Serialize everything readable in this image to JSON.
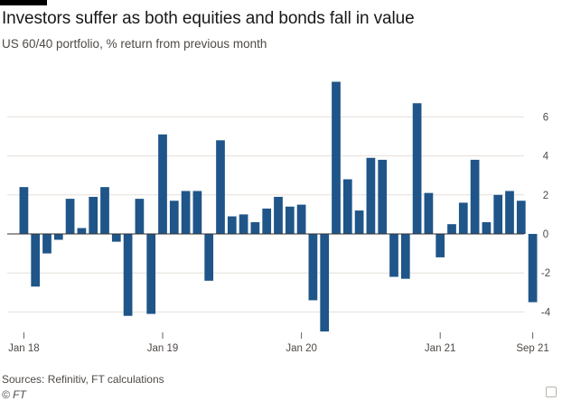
{
  "header": {
    "title": "Investors suffer as both equities and bonds fall in value",
    "subtitle": "US 60/40 portfolio, % return from previous month"
  },
  "footer": {
    "source": "Sources: Refinitiv, FT calculations",
    "copyright": "© FT"
  },
  "colors": {
    "bar": "#1f5589",
    "grid": "#e6dfd9",
    "zero_line": "#33302e",
    "text": "#4e4a47"
  },
  "chart_data": {
    "type": "bar",
    "title": "Investors suffer as both equities and bonds fall in value",
    "subtitle": "US 60/40 portfolio, % return from previous month",
    "xlabel": "",
    "ylabel": "",
    "ylim": [
      -5,
      8
    ],
    "yticks": [
      6,
      4,
      2,
      0,
      -2,
      -4
    ],
    "ytick_labels": [
      "6",
      "4",
      "2",
      "0",
      "-2",
      "-4"
    ],
    "xtick_labels": [
      {
        "label": "Jan 18",
        "index": 0
      },
      {
        "label": "Jan 19",
        "index": 12
      },
      {
        "label": "Jan 20",
        "index": 24
      },
      {
        "label": "Jan 21",
        "index": 36
      },
      {
        "label": "Sep 21",
        "index": 44
      }
    ],
    "categories": [
      "2018-01",
      "2018-02",
      "2018-03",
      "2018-04",
      "2018-05",
      "2018-06",
      "2018-07",
      "2018-08",
      "2018-09",
      "2018-10",
      "2018-11",
      "2018-12",
      "2019-01",
      "2019-02",
      "2019-03",
      "2019-04",
      "2019-05",
      "2019-06",
      "2019-07",
      "2019-08",
      "2019-09",
      "2019-10",
      "2019-11",
      "2019-12",
      "2020-01",
      "2020-02",
      "2020-03",
      "2020-04",
      "2020-05",
      "2020-06",
      "2020-07",
      "2020-08",
      "2020-09",
      "2020-10",
      "2020-11",
      "2020-12",
      "2021-01",
      "2021-02",
      "2021-03",
      "2021-04",
      "2021-05",
      "2021-06",
      "2021-07",
      "2021-08",
      "2021-09"
    ],
    "values": [
      2.4,
      -2.7,
      -1.0,
      -0.3,
      1.8,
      0.3,
      1.9,
      2.4,
      -0.4,
      -4.2,
      1.8,
      -4.1,
      5.1,
      1.7,
      2.2,
      2.2,
      -2.4,
      4.8,
      0.9,
      1.0,
      0.6,
      1.3,
      1.9,
      1.4,
      1.5,
      -3.4,
      -5.0,
      7.8,
      2.8,
      1.2,
      3.9,
      3.8,
      -2.2,
      -2.3,
      6.7,
      2.1,
      -1.2,
      0.5,
      1.6,
      3.8,
      0.6,
      2.0,
      2.2,
      1.7,
      -3.5
    ]
  }
}
